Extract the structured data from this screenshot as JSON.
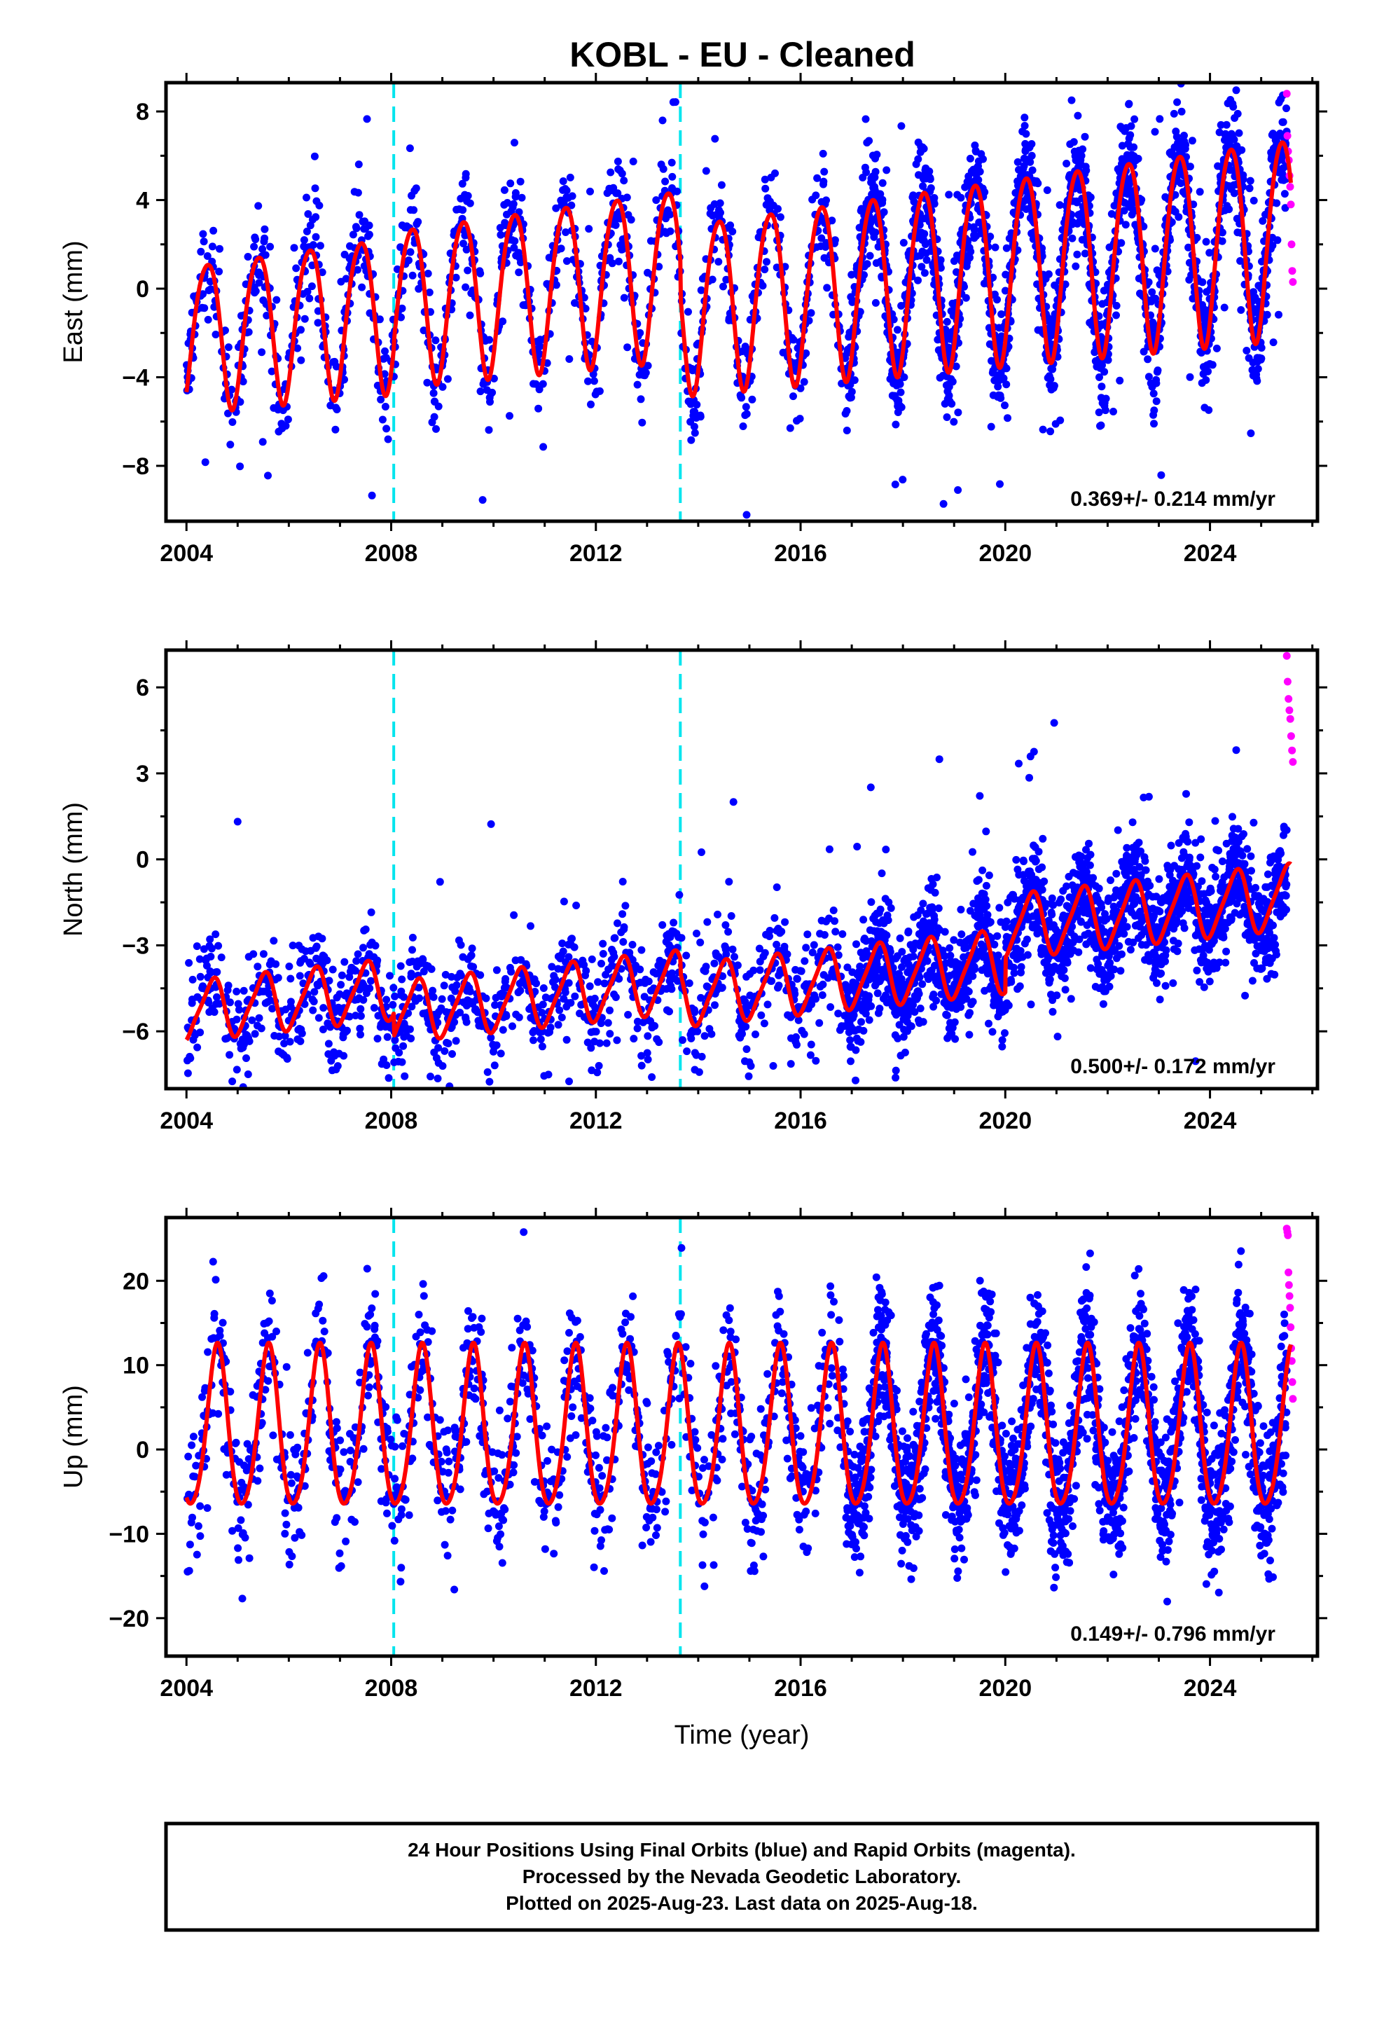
{
  "title": "KOBL  - EU - Cleaned",
  "footer": {
    "lines": [
      "24 Hour Positions Using Final Orbits (blue) and Rapid Orbits (magenta).",
      "Processed by the Nevada Geodetic Laboratory.",
      "Plotted on 2025-Aug-23. Last data on 2025-Aug-18."
    ]
  },
  "colors": {
    "final_orbits": "#0000ff",
    "rapid_orbits": "#ff00ff",
    "model": "#ff0000",
    "equipment_change": "#00e5ee",
    "frame": "#000000"
  },
  "chart_data": [
    {
      "type": "scatter",
      "ylabel": "East (mm)",
      "xlabel": "",
      "xlim": [
        2003.6,
        2026.1
      ],
      "ylim": [
        -10.5,
        9.3
      ],
      "xticks": [
        2004,
        2008,
        2012,
        2016,
        2020,
        2024
      ],
      "xtick_labels": [
        "2004",
        "2008",
        "2012",
        "2016",
        "2020",
        "2024"
      ],
      "yticks": [
        -8,
        -4,
        0,
        4,
        8
      ],
      "ytick_labels": [
        "−8",
        "−4",
        "0",
        "4",
        "8"
      ],
      "grid": false,
      "vlines": [
        2008.05,
        2013.65
      ],
      "rate_label": "0.369+/- 0.214 mm/yr",
      "model": {
        "offset": -2.0,
        "slope": 0.27,
        "amplitude": [
          3.3,
          4.5
        ],
        "phase": 0.15,
        "semi_annual": 0.4,
        "steps": [
          {
            "t": 2008.05,
            "dy": 0.3
          },
          {
            "t": 2013.65,
            "dy": -1.6
          }
        ]
      },
      "scatter": {
        "noise": 1.2,
        "outlier_rate": 0.05,
        "outlier_scale": 4.5
      },
      "rapid": {
        "t_start": 2025.5,
        "t_end": 2025.62,
        "values": [
          8.8,
          6.9,
          6.2,
          5.8,
          5.1,
          4.6,
          3.8,
          2.0,
          0.8,
          0.3
        ]
      }
    },
    {
      "type": "scatter",
      "ylabel": "North (mm)",
      "xlabel": "",
      "xlim": [
        2003.6,
        2026.1
      ],
      "ylim": [
        -8.0,
        7.3
      ],
      "xticks": [
        2004,
        2008,
        2012,
        2016,
        2020,
        2024
      ],
      "xtick_labels": [
        "2004",
        "2008",
        "2012",
        "2016",
        "2020",
        "2024"
      ],
      "yticks": [
        -6,
        -3,
        0,
        3,
        6
      ],
      "ytick_labels": [
        "−6",
        "−3",
        "0",
        "3",
        "6"
      ],
      "grid": false,
      "vlines": [
        2008.05,
        2013.65
      ],
      "rate_label": "0.500+/- 0.172 mm/yr",
      "model": {
        "offset": -5.3,
        "slope": 0.19,
        "amplitude": [
          1.0,
          1.1
        ],
        "phase": 0.25,
        "semi_annual": 0.2,
        "steps": [
          {
            "t": 2008.05,
            "dy": -0.8
          },
          {
            "t": 2013.65,
            "dy": -0.5
          },
          {
            "t": 2020.0,
            "dy": 1.2
          }
        ]
      },
      "scatter": {
        "noise": 0.9,
        "outlier_rate": 0.04,
        "outlier_scale": 3.5
      },
      "rapid": {
        "t_start": 2025.5,
        "t_end": 2025.62,
        "values": [
          7.1,
          6.2,
          5.6,
          5.2,
          4.9,
          4.3,
          3.8,
          3.4
        ]
      }
    },
    {
      "type": "scatter",
      "ylabel": "Up (mm)",
      "xlabel": "Time (year)",
      "xlim": [
        2003.6,
        2026.1
      ],
      "ylim": [
        -24.5,
        27.5
      ],
      "xticks": [
        2004,
        2008,
        2012,
        2016,
        2020,
        2024
      ],
      "xtick_labels": [
        "2004",
        "2008",
        "2012",
        "2016",
        "2020",
        "2024"
      ],
      "yticks": [
        -20,
        -10,
        0,
        10,
        20
      ],
      "ytick_labels": [
        "−20",
        "−10",
        "0",
        "10",
        "20"
      ],
      "grid": false,
      "vlines": [
        2008.05,
        2013.65
      ],
      "rate_label": "0.149+/- 0.796 mm/yr",
      "model": {
        "offset": 2.0,
        "slope": 0.0,
        "amplitude": [
          9.5,
          9.5
        ],
        "phase": 0.35,
        "semi_annual": 1.2,
        "steps": []
      },
      "scatter": {
        "noise": 4.0,
        "outlier_rate": 0.05,
        "outlier_scale": 3.0
      },
      "rapid": {
        "t_start": 2025.5,
        "t_end": 2025.62,
        "values": [
          26.2,
          25.8,
          25.4,
          21.0,
          19.5,
          18.2,
          16.8,
          14.5,
          12.0,
          10.5,
          8.0,
          6.0
        ]
      }
    }
  ]
}
